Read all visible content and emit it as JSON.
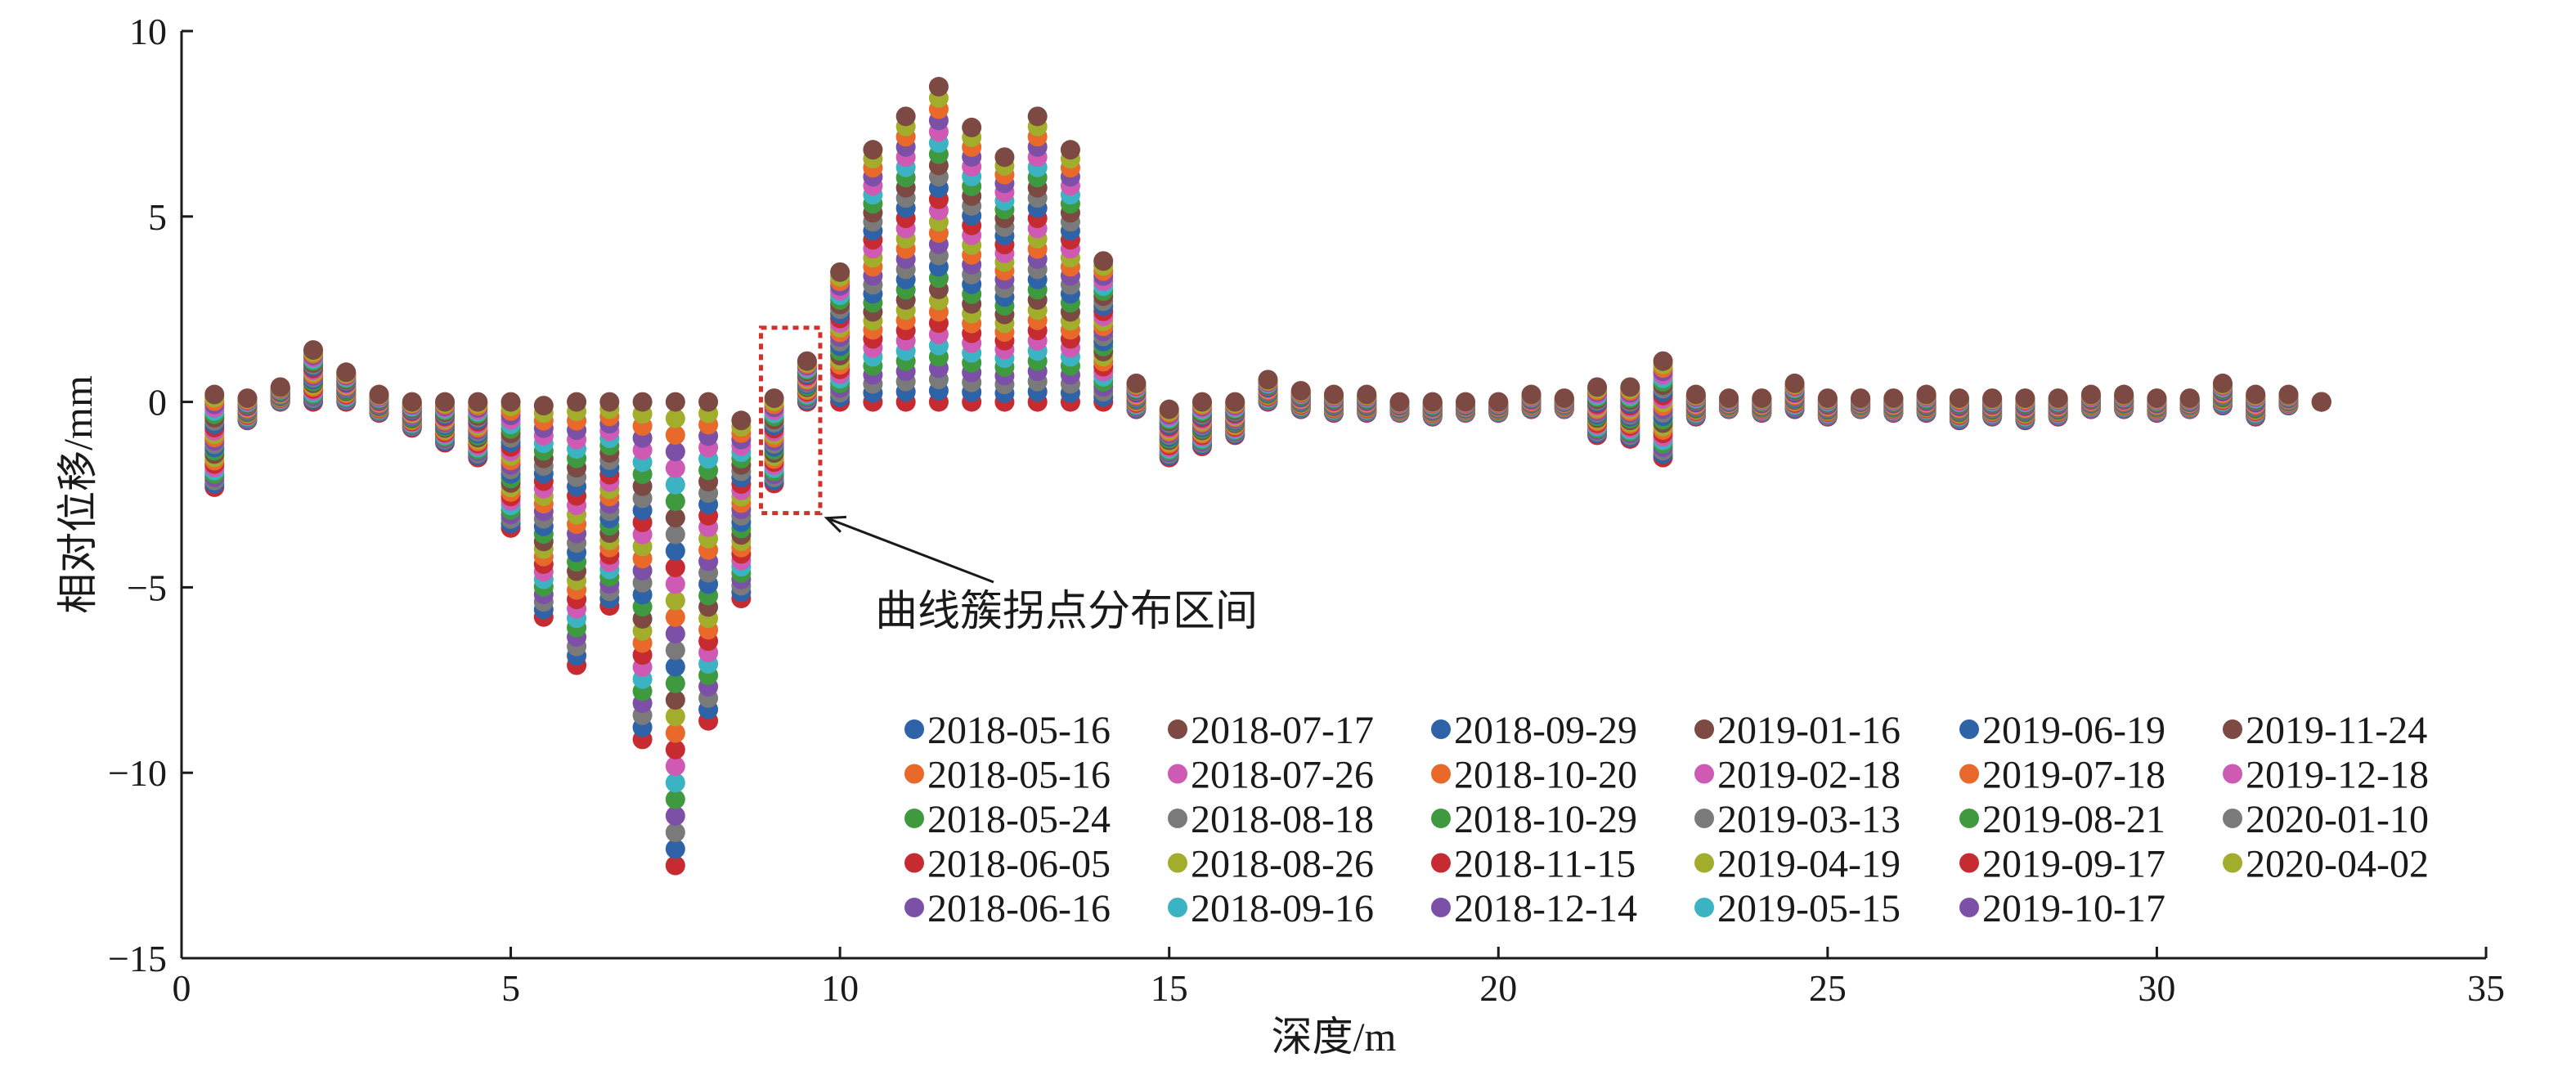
{
  "chart_data": {
    "type": "scatter",
    "xlabel": "深度/m",
    "ylabel": "相对位移/mm",
    "xlim": [
      0,
      35
    ],
    "ylim": [
      -15,
      10
    ],
    "xticks": [
      0,
      5,
      10,
      15,
      20,
      25,
      30,
      35
    ],
    "yticks": [
      10,
      5,
      0,
      -5,
      -10,
      -15
    ],
    "grid": false,
    "legend_placement": "lower-right",
    "x": [
      0.5,
      1,
      1.5,
      2,
      2.5,
      3,
      3.5,
      4,
      4.5,
      5,
      5.5,
      6,
      6.5,
      7,
      7.5,
      8,
      8.5,
      9,
      9.5,
      10,
      10.5,
      11,
      11.5,
      12,
      12.5,
      13,
      13.5,
      14,
      14.5,
      15,
      15.5,
      16,
      16.5,
      17,
      17.5,
      18,
      18.5,
      19,
      19.5,
      20,
      20.5,
      21,
      21.5,
      22,
      22.5,
      23,
      23.5,
      24,
      24.5,
      25,
      25.5,
      26,
      26.5,
      27,
      27.5,
      28,
      28.5,
      29,
      29.5,
      30,
      30.5,
      31,
      31.5,
      32,
      32.5
    ],
    "envelope_max": [
      0.2,
      0.1,
      0.4,
      1.4,
      0.8,
      0.2,
      0,
      0,
      0,
      0,
      -0.1,
      0,
      0,
      0,
      0,
      0,
      -0.5,
      0.1,
      1.1,
      3.5,
      6.8,
      7.7,
      8.5,
      7.4,
      6.6,
      7.7,
      6.8,
      3.8,
      0.5,
      -0.2,
      0,
      0,
      0.6,
      0.3,
      0.2,
      0.2,
      0,
      0,
      0,
      0,
      0.2,
      0.1,
      0.4,
      0.4,
      1.1,
      0.2,
      0.1,
      0.1,
      0.5,
      0.1,
      0.1,
      0.1,
      0.2,
      0.1,
      0.1,
      0.1,
      0.1,
      0.2,
      0.2,
      0.1,
      0.1,
      0.5,
      0.2,
      0.2,
      0
    ],
    "envelope_min": [
      -2.3,
      -0.5,
      0,
      0,
      0,
      -0.3,
      -0.7,
      -1.1,
      -1.5,
      -3.4,
      -5.8,
      -7.1,
      -5.5,
      -9.1,
      -12.5,
      -8.6,
      -5.3,
      -2.2,
      0,
      0,
      0,
      0,
      0,
      0,
      0,
      0,
      0,
      0,
      -0.2,
      -1.5,
      -1.2,
      -0.9,
      0,
      -0.2,
      -0.3,
      -0.3,
      -0.3,
      -0.4,
      -0.3,
      -0.3,
      -0.2,
      -0.2,
      -0.9,
      -1,
      -1.5,
      -0.4,
      -0.2,
      -0.3,
      -0.2,
      -0.4,
      -0.2,
      -0.3,
      -0.3,
      -0.5,
      -0.4,
      -0.5,
      -0.4,
      -0.2,
      -0.2,
      -0.3,
      -0.2,
      -0.1,
      -0.4,
      -0.1,
      0
    ],
    "series": [
      {
        "name": "2018-05-16",
        "color": "#2e63a8"
      },
      {
        "name": "2018-05-16",
        "color": "#e8692a"
      },
      {
        "name": "2018-05-24",
        "color": "#3f9a3f"
      },
      {
        "name": "2018-06-05",
        "color": "#c62b31"
      },
      {
        "name": "2018-06-16",
        "color": "#7b50a6"
      },
      {
        "name": "2018-07-17",
        "color": "#7d4a43"
      },
      {
        "name": "2018-07-26",
        "color": "#cf5ab4"
      },
      {
        "name": "2018-08-18",
        "color": "#7a7a7a"
      },
      {
        "name": "2018-08-26",
        "color": "#a3ad2c"
      },
      {
        "name": "2018-09-16",
        "color": "#3bb3c2"
      },
      {
        "name": "2018-09-29",
        "color": "#2e63a8"
      },
      {
        "name": "2018-10-20",
        "color": "#e8692a"
      },
      {
        "name": "2018-10-29",
        "color": "#3f9a3f"
      },
      {
        "name": "2018-11-15",
        "color": "#c62b31"
      },
      {
        "name": "2018-12-14",
        "color": "#7b50a6"
      },
      {
        "name": "2019-01-16",
        "color": "#7d4a43"
      },
      {
        "name": "2019-02-18",
        "color": "#cf5ab4"
      },
      {
        "name": "2019-03-13",
        "color": "#7a7a7a"
      },
      {
        "name": "2019-04-19",
        "color": "#a3ad2c"
      },
      {
        "name": "2019-05-15",
        "color": "#3bb3c2"
      },
      {
        "name": "2019-06-19",
        "color": "#2e63a8"
      },
      {
        "name": "2019-07-18",
        "color": "#e8692a"
      },
      {
        "name": "2019-08-21",
        "color": "#3f9a3f"
      },
      {
        "name": "2019-09-17",
        "color": "#c62b31"
      },
      {
        "name": "2019-10-17",
        "color": "#7b50a6"
      },
      {
        "name": "2019-11-24",
        "color": "#7d4a43"
      },
      {
        "name": "2019-12-18",
        "color": "#cf5ab4"
      },
      {
        "name": "2020-01-10",
        "color": "#7a7a7a"
      },
      {
        "name": "2020-04-02",
        "color": "#a3ad2c"
      }
    ],
    "annotation": {
      "text": "曲线簇拐点分布区间",
      "box_x": [
        8.8,
        9.7
      ],
      "box_y": [
        -3,
        2
      ]
    }
  }
}
